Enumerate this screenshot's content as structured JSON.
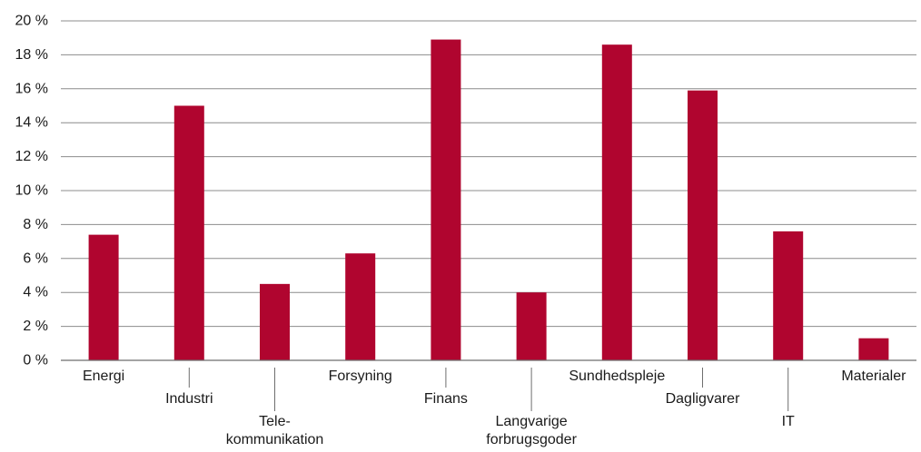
{
  "chart_data": {
    "type": "bar",
    "title": "",
    "xlabel": "",
    "ylabel": "",
    "ylim": [
      0,
      20
    ],
    "y_ticks": [
      0,
      2,
      4,
      6,
      8,
      10,
      12,
      14,
      16,
      18,
      20
    ],
    "y_tick_labels": [
      "0 %",
      "2 %",
      "4 %",
      "6 %",
      "8 %",
      "10 %",
      "12 %",
      "14 %",
      "16 %",
      "18 %",
      "20 %"
    ],
    "grid": true,
    "categories": [
      [
        "Energi"
      ],
      [
        "Industri"
      ],
      [
        "Tele-",
        "kommunikation"
      ],
      [
        "Forsyning"
      ],
      [
        "Finans"
      ],
      [
        "Langvarige",
        "forbrugsgoder"
      ],
      [
        "Sundhedspleje"
      ],
      [
        "Dagligvarer"
      ],
      [
        "IT"
      ],
      [
        "Materialer"
      ]
    ],
    "series": [
      {
        "values": [
          7.4,
          15.0,
          4.5,
          6.3,
          18.9,
          4.0,
          18.6,
          15.9,
          7.6,
          1.3
        ]
      }
    ],
    "bar_color": "#b0052f",
    "grid_color": "#8c8c8c",
    "axis_color": "#6e6e6e"
  }
}
